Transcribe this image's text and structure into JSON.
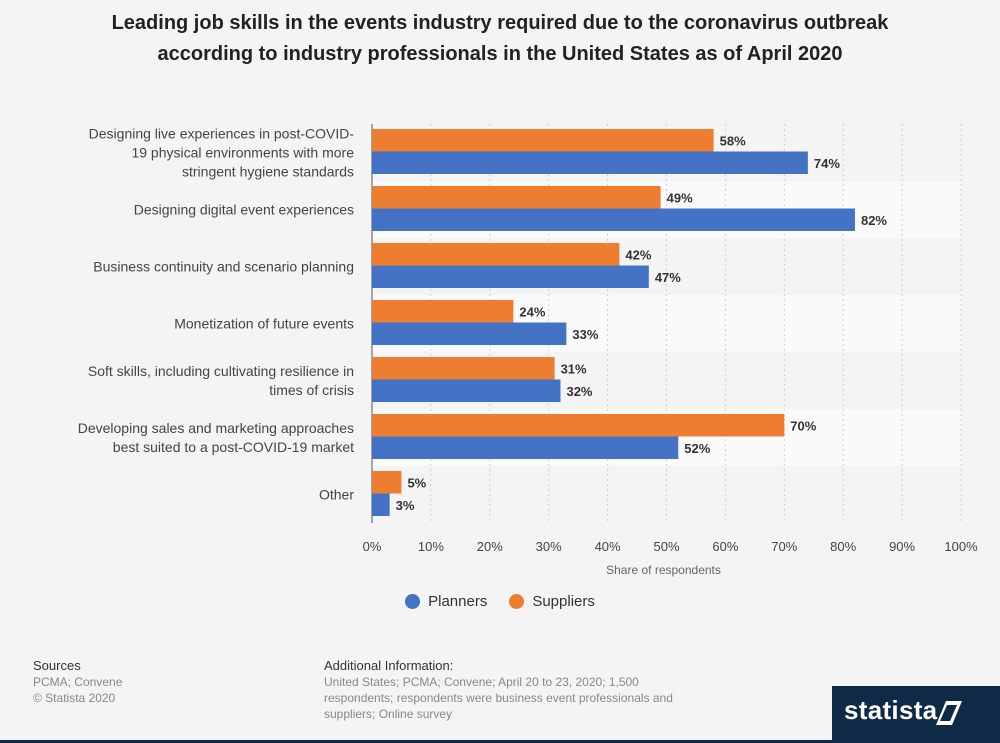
{
  "title": "Leading job skills in the events industry required due to the coronavirus outbreak according to industry professionals in the United States as of April 2020",
  "chart_data": {
    "type": "bar",
    "orientation": "horizontal",
    "categories": [
      "Designing live experiences in post-COVID-19 physical environments with more stringent hygiene standards",
      "Designing digital event experiences",
      "Business continuity and scenario planning",
      "Monetization of future events",
      "Soft skills, including cultivating resilience in times of crisis",
      "Developing sales and marketing approaches best suited to a post-COVID-19 market",
      "Other"
    ],
    "category_lines": [
      [
        "Designing live experiences in post-COVID-",
        "19 physical environments with more",
        "stringent hygiene standards"
      ],
      [
        "Designing digital event experiences"
      ],
      [
        "Business continuity and scenario planning"
      ],
      [
        "Monetization of future events"
      ],
      [
        "Soft skills, including cultivating resilience in",
        "times of crisis"
      ],
      [
        "Developing sales and marketing approaches",
        "best suited to a post-COVID-19 market"
      ],
      [
        "Other"
      ]
    ],
    "series": [
      {
        "name": "Suppliers",
        "color": "#ed7d31",
        "values": [
          58,
          49,
          42,
          24,
          31,
          70,
          5
        ]
      },
      {
        "name": "Planners",
        "color": "#4472c4",
        "values": [
          74,
          82,
          47,
          33,
          32,
          52,
          3
        ]
      }
    ],
    "value_suffix": "%",
    "xlim": [
      0,
      100
    ],
    "x_ticks": [
      "0%",
      "10%",
      "20%",
      "30%",
      "40%",
      "50%",
      "60%",
      "70%",
      "80%",
      "90%",
      "100%"
    ],
    "xlabel": "Share of respondents",
    "grid": true,
    "legend_position": "bottom"
  },
  "legend": [
    {
      "name": "Planners",
      "color": "#4472c4"
    },
    {
      "name": "Suppliers",
      "color": "#ed7d31"
    }
  ],
  "footer": {
    "sources_heading": "Sources",
    "sources_lines": [
      "PCMA; Convene",
      "© Statista 2020"
    ],
    "info_heading": "Additional Information:",
    "info_text": "United States; PCMA; Convene; April 20 to 23, 2020; 1,500 respondents; respondents were business event professionals and suppliers; Online survey"
  },
  "logo": {
    "text": "statista"
  }
}
